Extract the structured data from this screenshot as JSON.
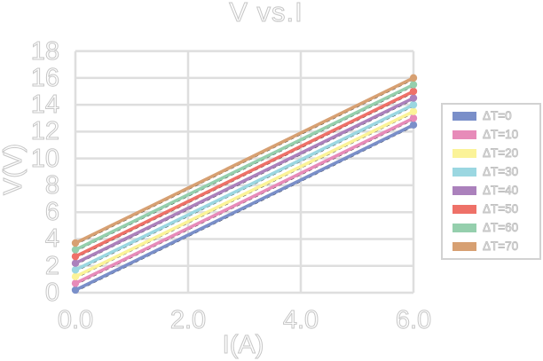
{
  "title": "V vs.I",
  "chart_data": {
    "type": "line",
    "title": "V vs.I",
    "xlabel": "I(A)",
    "ylabel": "V(V)",
    "xlim": [
      0,
      6
    ],
    "ylim": [
      0,
      18
    ],
    "x_tick_labels": [
      "0.0",
      "2.0",
      "4.0",
      "6.0"
    ],
    "x_tick_values": [
      0,
      2,
      4,
      6
    ],
    "y_tick_labels": [
      "0",
      "2",
      "4",
      "6",
      "8",
      "10",
      "12",
      "14",
      "16",
      "18"
    ],
    "y_tick_values": [
      0,
      2,
      4,
      6,
      8,
      10,
      12,
      14,
      16,
      18
    ],
    "grid": true,
    "legend_position": "right",
    "x": [
      0,
      6
    ],
    "series": [
      {
        "name": "ΔT=0",
        "dt": 0,
        "color": "#7a8fc9",
        "values": [
          0.2,
          12.5
        ]
      },
      {
        "name": "ΔT=10",
        "dt": 10,
        "color": "#e78bb9",
        "values": [
          0.7,
          13.0
        ]
      },
      {
        "name": "ΔT=20",
        "dt": 20,
        "color": "#fbf398",
        "values": [
          1.2,
          13.5
        ]
      },
      {
        "name": "ΔT=30",
        "dt": 30,
        "color": "#9bd7e1",
        "values": [
          1.7,
          14.0
        ]
      },
      {
        "name": "ΔT=40",
        "dt": 40,
        "color": "#ab81bc",
        "values": [
          2.2,
          14.5
        ]
      },
      {
        "name": "ΔT=50",
        "dt": 50,
        "color": "#ee7168",
        "values": [
          2.7,
          15.0
        ]
      },
      {
        "name": "ΔT=60",
        "dt": 60,
        "color": "#95cfad",
        "values": [
          3.2,
          15.5
        ]
      },
      {
        "name": "ΔT=70",
        "dt": 70,
        "color": "#d7a072",
        "values": [
          3.7,
          16.0
        ]
      }
    ],
    "trendline_style": {
      "color": "#111111",
      "dash": "dashed"
    },
    "marker": "circle-at-endpoints"
  },
  "colors": {
    "gridline": "#dedede",
    "legend_border": "#d2d2d2",
    "text_outline": "#c6c6c6",
    "background": "#ffffff"
  }
}
